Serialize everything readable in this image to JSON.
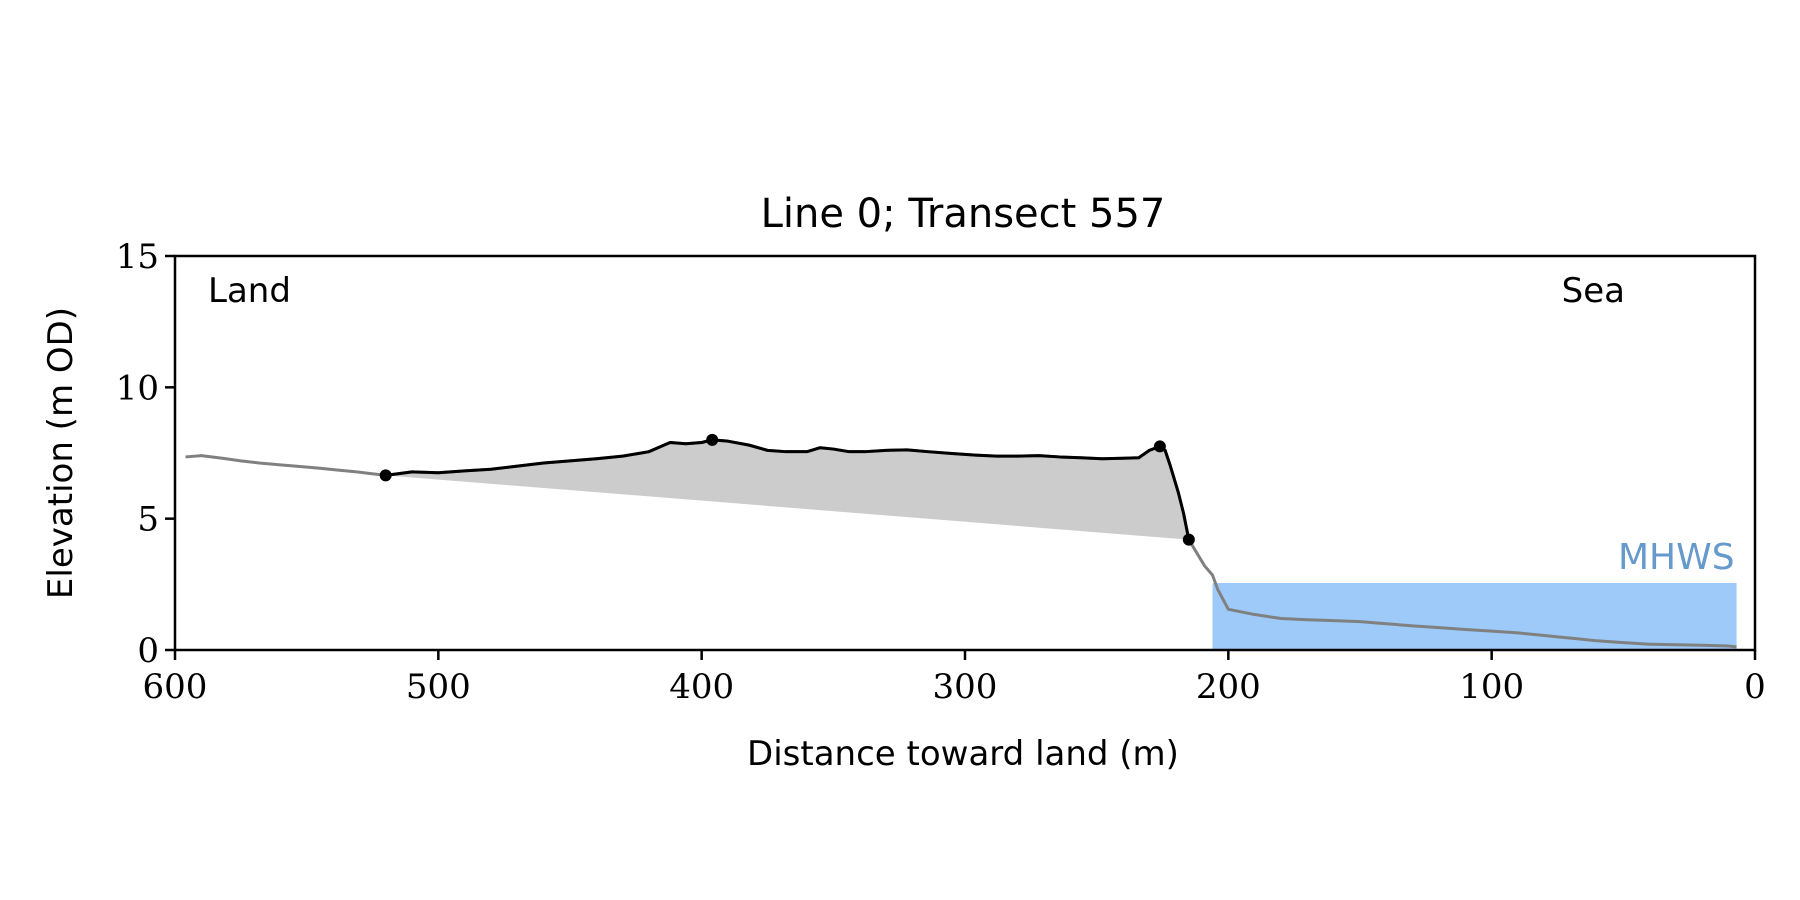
{
  "chart_data": {
    "type": "area",
    "title": "Line 0; Transect 557",
    "xlabel": "Distance toward land (m)",
    "ylabel": "Elevation (m OD)",
    "xlim": [
      600,
      0
    ],
    "ylim": [
      0,
      15
    ],
    "x_ticks": [
      "600",
      "500",
      "400",
      "300",
      "200",
      "100",
      "0"
    ],
    "y_ticks": [
      "0",
      "5",
      "10",
      "15"
    ],
    "grid": false,
    "annotations": {
      "left": "Land",
      "right": "Sea"
    },
    "mhws": {
      "label": "MHWS",
      "elevation": 2.55,
      "x_from": 206,
      "x_to": 7,
      "color": "#9dcaf9",
      "label_color": "#6699cc"
    },
    "colors": {
      "profile": "#808080",
      "dune": "#000000",
      "dune_fill": "#cccccc"
    },
    "profile": {
      "name": "Full transect profile",
      "x": [
        596,
        590,
        582,
        575,
        568,
        560,
        552,
        545,
        538,
        531,
        526,
        520,
        510,
        500,
        490,
        480,
        470,
        460,
        450,
        440,
        430,
        420,
        412,
        406,
        400,
        396,
        390,
        382,
        375,
        368,
        360,
        355,
        350,
        344,
        338,
        330,
        322,
        314,
        305,
        296,
        288,
        280,
        272,
        264,
        256,
        248,
        240,
        234,
        230,
        226,
        224,
        222,
        219,
        217,
        215,
        212,
        209,
        206,
        204,
        200,
        195,
        190,
        180,
        170,
        160,
        150,
        140,
        130,
        120,
        110,
        100,
        90,
        80,
        70,
        60,
        50,
        40,
        30,
        20,
        10,
        7
      ],
      "y": [
        7.35,
        7.4,
        7.3,
        7.2,
        7.12,
        7.05,
        6.98,
        6.92,
        6.85,
        6.78,
        6.72,
        6.65,
        6.78,
        6.75,
        6.82,
        6.88,
        7.0,
        7.12,
        7.2,
        7.28,
        7.38,
        7.55,
        7.9,
        7.85,
        7.9,
        8.0,
        7.95,
        7.8,
        7.6,
        7.55,
        7.55,
        7.7,
        7.65,
        7.55,
        7.55,
        7.6,
        7.62,
        7.55,
        7.48,
        7.42,
        7.38,
        7.38,
        7.4,
        7.35,
        7.32,
        7.28,
        7.3,
        7.32,
        7.6,
        7.75,
        7.6,
        7.0,
        6.0,
        5.2,
        4.2,
        3.7,
        3.2,
        2.85,
        2.3,
        1.55,
        1.45,
        1.35,
        1.2,
        1.15,
        1.12,
        1.08,
        1.0,
        0.92,
        0.85,
        0.78,
        0.72,
        0.65,
        0.55,
        0.45,
        0.35,
        0.28,
        0.22,
        0.2,
        0.18,
        0.15,
        0.12
      ]
    },
    "dune": {
      "name": "Dune section",
      "x": [
        520,
        510,
        500,
        490,
        480,
        470,
        460,
        450,
        440,
        430,
        420,
        412,
        406,
        400,
        396,
        390,
        382,
        375,
        368,
        360,
        355,
        350,
        344,
        338,
        330,
        322,
        314,
        305,
        296,
        288,
        280,
        272,
        264,
        256,
        248,
        240,
        234,
        230,
        226,
        224,
        222,
        219,
        217,
        215
      ],
      "y": [
        6.65,
        6.78,
        6.75,
        6.82,
        6.88,
        7.0,
        7.12,
        7.2,
        7.28,
        7.38,
        7.55,
        7.9,
        7.85,
        7.9,
        8.0,
        7.95,
        7.8,
        7.6,
        7.55,
        7.55,
        7.7,
        7.65,
        7.55,
        7.55,
        7.6,
        7.62,
        7.55,
        7.48,
        7.42,
        7.38,
        7.38,
        7.4,
        7.35,
        7.32,
        7.28,
        7.3,
        7.32,
        7.6,
        7.75,
        7.6,
        7.0,
        6.0,
        5.2,
        4.2
      ]
    },
    "dune_baseline": {
      "x": [
        520,
        215
      ],
      "y": [
        6.65,
        4.2
      ]
    },
    "key_points": [
      {
        "x": 520,
        "y": 6.65
      },
      {
        "x": 396,
        "y": 8.0
      },
      {
        "x": 226,
        "y": 7.75
      },
      {
        "x": 215,
        "y": 4.2
      }
    ]
  }
}
